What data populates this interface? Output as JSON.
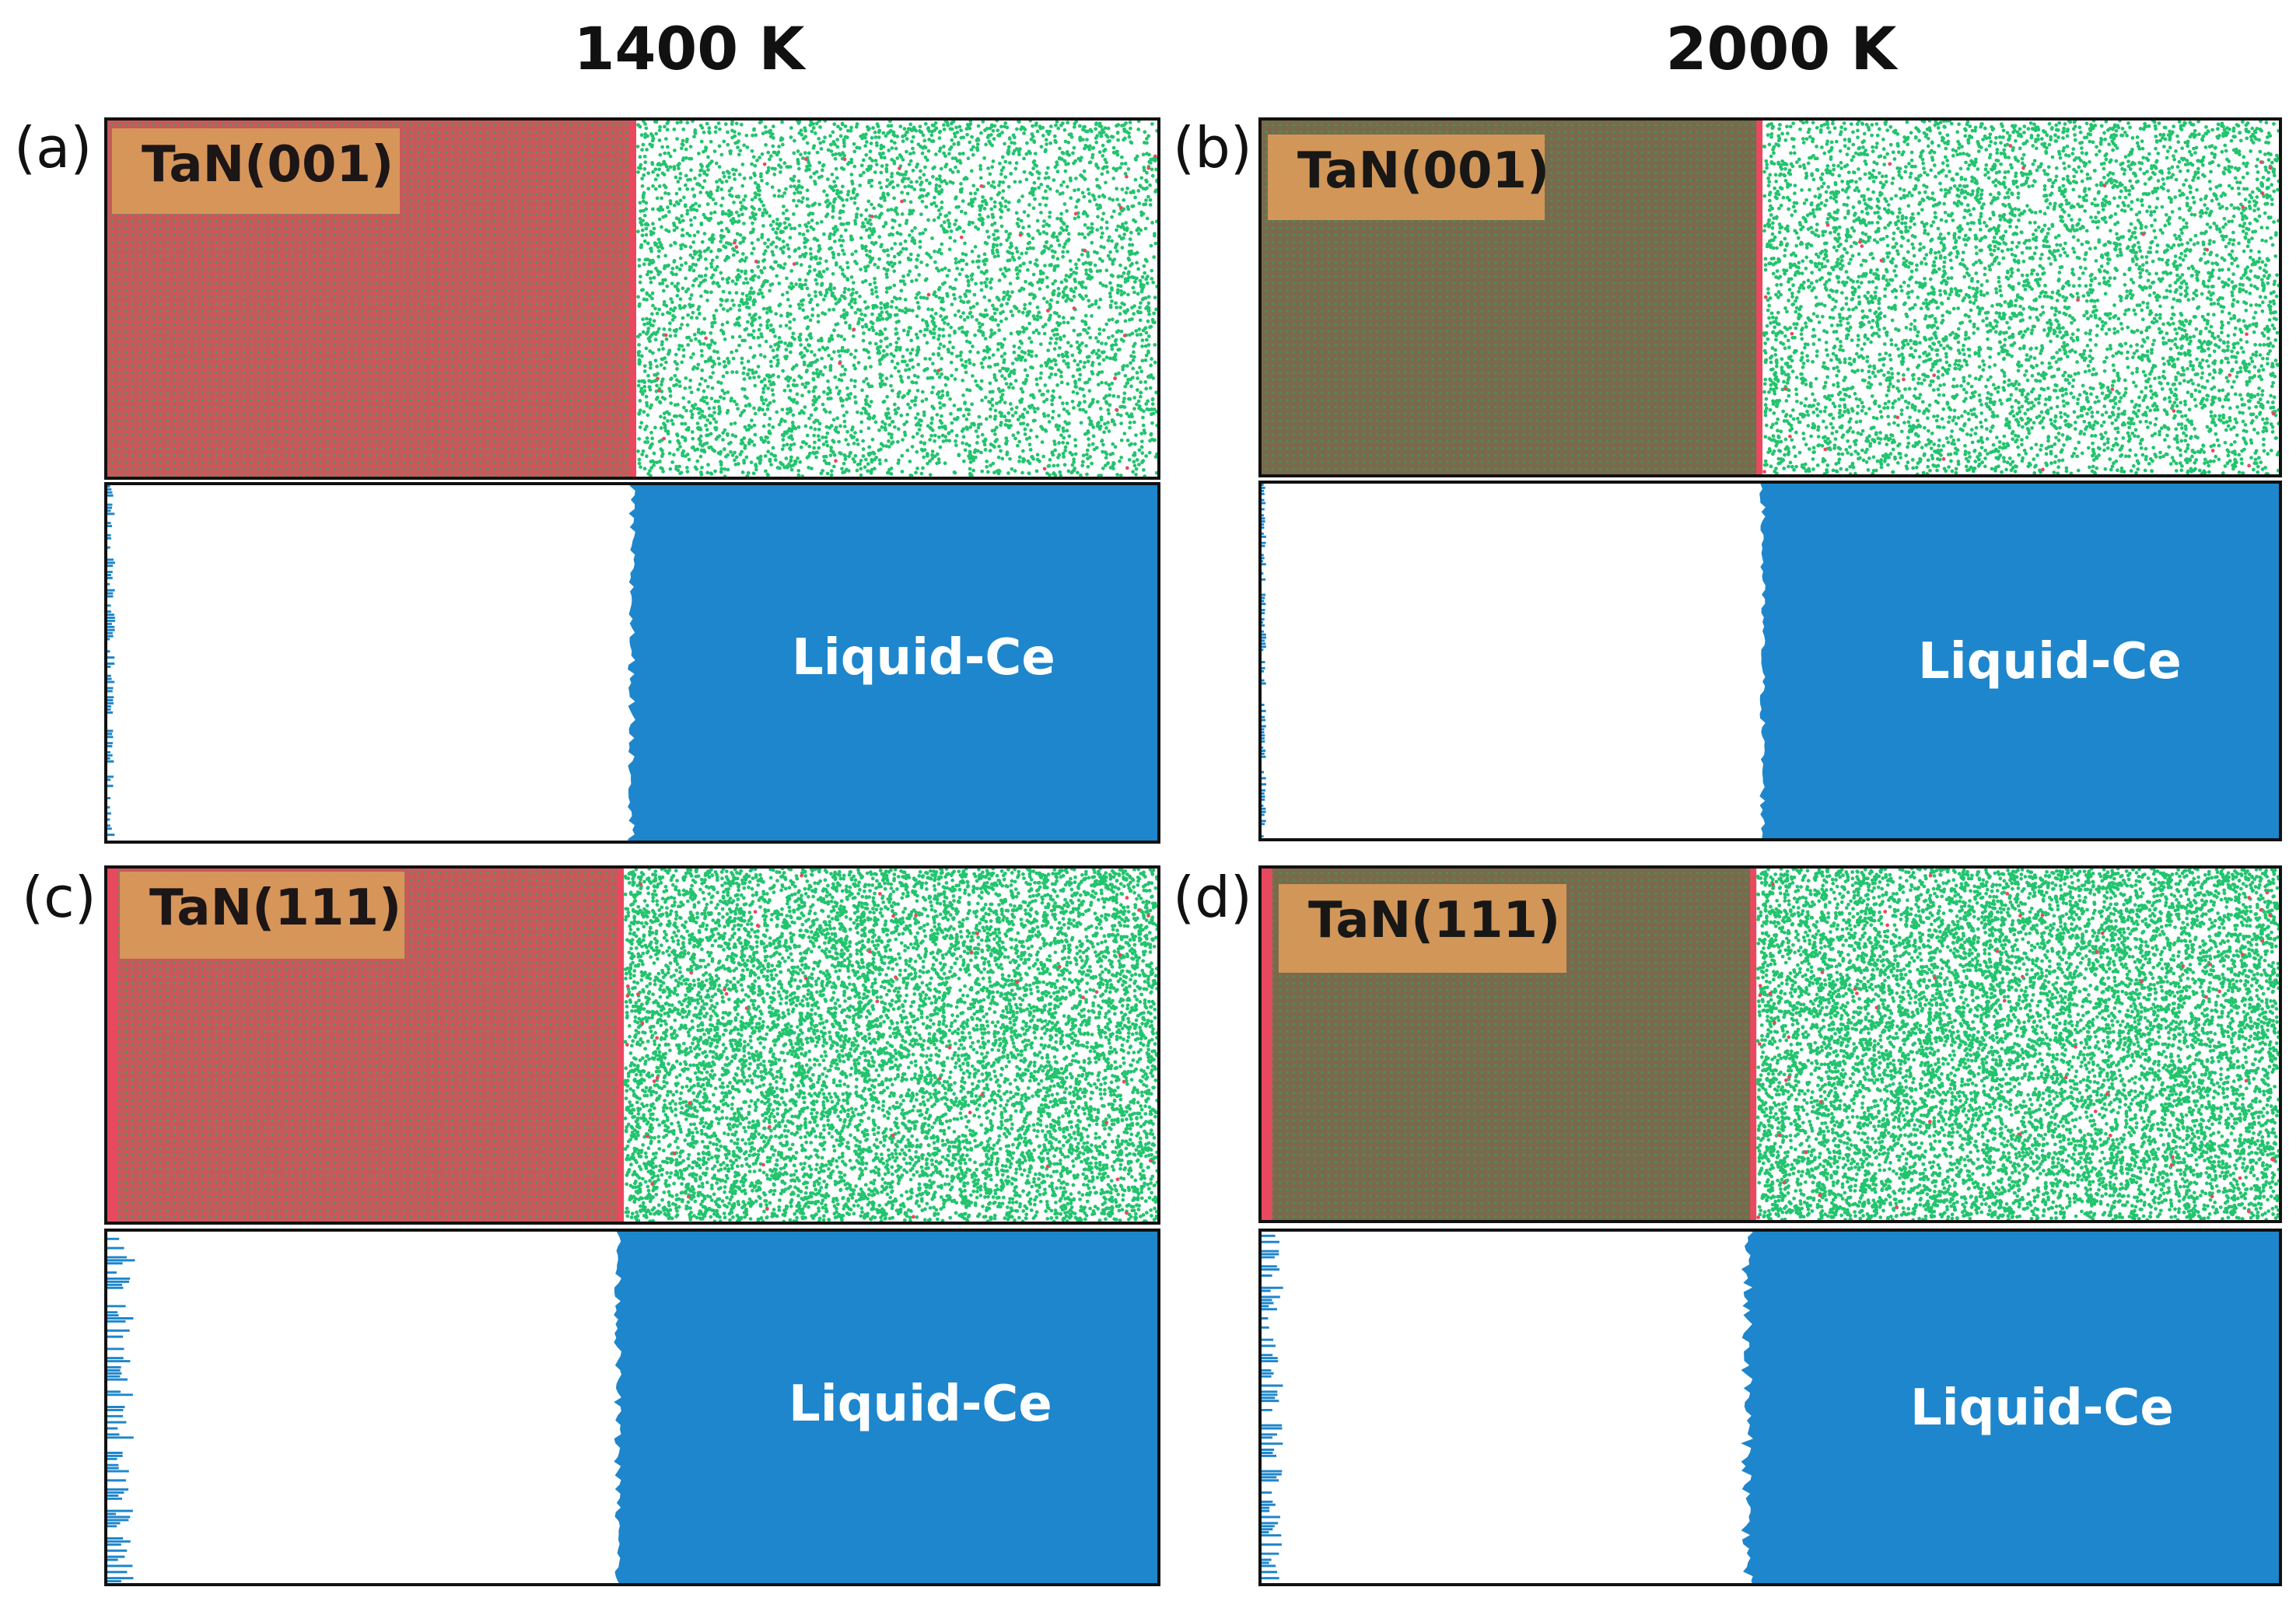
{
  "columns": [
    "1400 K",
    "2000 K"
  ],
  "panels": [
    {
      "letter": "(a)",
      "surface_label": "TaN(001)",
      "liquid_label": "Liquid-Ce",
      "temperature": "1400 K"
    },
    {
      "letter": "(b)",
      "surface_label": "TaN(001)",
      "liquid_label": "Liquid-Ce",
      "temperature": "2000 K"
    },
    {
      "letter": "(c)",
      "surface_label": "TaN(111)",
      "liquid_label": "Liquid-Ce",
      "temperature": "1400 K"
    },
    {
      "letter": "(d)",
      "surface_label": "TaN(111)",
      "liquid_label": "Liquid-Ce",
      "temperature": "2000 K"
    }
  ],
  "colors": {
    "tantalum": "#e8495f",
    "nitrogen": "#22c46e",
    "cerium": "#1e86cc",
    "slab_fill_1400K": "#c8585a",
    "slab_fill_2000K": "#7a6a4c",
    "label_bg": "#d99a5a"
  }
}
